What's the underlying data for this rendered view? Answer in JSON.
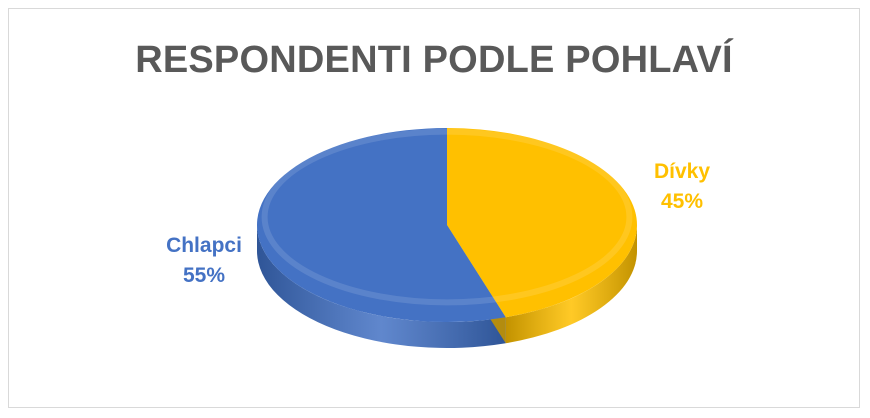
{
  "chart_data": {
    "type": "pie",
    "title": "RESPONDENTI PODLE POHLAVÍ",
    "style": "3d",
    "slices": [
      {
        "label": "Dívky",
        "value": 45,
        "percent_label": "45%",
        "color": "#FFC000",
        "dark_color": "#C29200"
      },
      {
        "label": "Chlapci",
        "value": 55,
        "percent_label": "55%",
        "color": "#4472C4",
        "dark_color": "#2F5597"
      }
    ],
    "data_labels": "outside, category name and percentage"
  }
}
